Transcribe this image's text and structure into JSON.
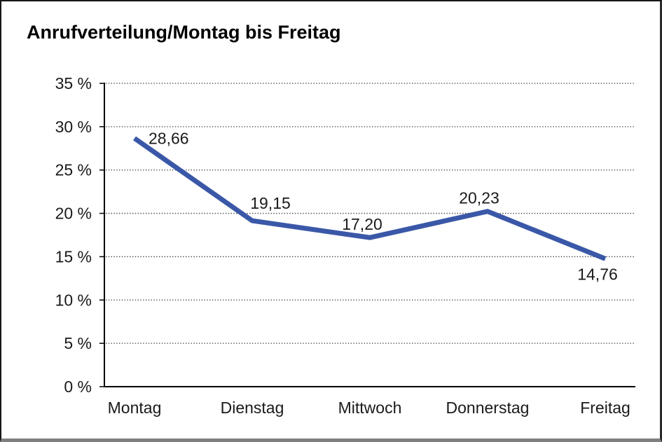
{
  "window": {
    "title": "Anrufverteilung/Montag bis Freitag"
  },
  "chart_data": {
    "type": "line",
    "title": "Anrufverteilung/Montag bis Freitag",
    "categories": [
      "Montag",
      "Dienstag",
      "Mittwoch",
      "Donnerstag",
      "Freitag"
    ],
    "series": [
      {
        "name": "Anrufverteilung",
        "values": [
          28.66,
          19.15,
          17.2,
          20.23,
          14.76
        ]
      }
    ],
    "value_labels": [
      "28,66",
      "19,15",
      "17,20",
      "20,23",
      "14,76"
    ],
    "y_ticks": [
      "35 %",
      "30 %",
      "25 %",
      "20 %",
      "15 %",
      "10 %",
      "5 %",
      "0 %"
    ],
    "ylim": [
      0,
      35
    ],
    "y_tick_step": 5,
    "xlabel": "",
    "ylabel": "",
    "grid": "horizontal-dotted",
    "legend_position": "none",
    "colors": {
      "line": "#3A58A7",
      "axis": "#000000",
      "gridline": "#3f3f3f",
      "text": "#1a1a1a"
    }
  }
}
